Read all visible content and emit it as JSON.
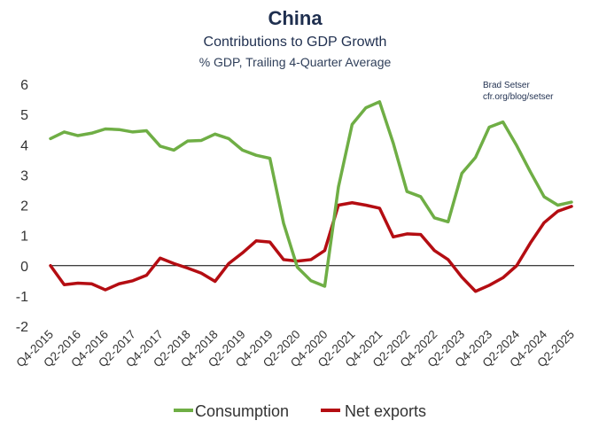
{
  "colors": {
    "consumption": "#6fae45",
    "net_exports": "#b40d12",
    "zero_line": "#000000",
    "title": "#1f2f4f"
  },
  "chart_data": {
    "type": "line",
    "title": "China",
    "subtitle": "Contributions to GDP Growth",
    "subtitle2": "% GDP, Trailing 4-Quarter Average",
    "credit_line1": "Brad Setser",
    "credit_line2": "cfr.org/blog/setser",
    "xlabel": "",
    "ylabel": "",
    "ylim": [
      -2,
      6
    ],
    "yticks": [
      "-2",
      "-1",
      "0",
      "1",
      "2",
      "3",
      "4",
      "5",
      "6"
    ],
    "grid": false,
    "legend": "bottom-center",
    "x": [
      "Q4-2015",
      "Q1-2016",
      "Q2-2016",
      "Q3-2016",
      "Q4-2016",
      "Q1-2017",
      "Q2-2017",
      "Q3-2017",
      "Q4-2017",
      "Q1-2018",
      "Q2-2018",
      "Q3-2018",
      "Q4-2018",
      "Q1-2019",
      "Q2-2019",
      "Q3-2019",
      "Q4-2019",
      "Q1-2020",
      "Q2-2020",
      "Q3-2020",
      "Q4-2020",
      "Q1-2021",
      "Q2-2021",
      "Q3-2021",
      "Q4-2021",
      "Q1-2022",
      "Q2-2022",
      "Q3-2022",
      "Q4-2022",
      "Q1-2023",
      "Q2-2023",
      "Q3-2023",
      "Q4-2023",
      "Q1-2024",
      "Q2-2024",
      "Q3-2024",
      "Q4-2024",
      "Q1-2025",
      "Q2-2025"
    ],
    "xticks": [
      "Q4-2015",
      "Q2-2016",
      "Q4-2016",
      "Q2-2017",
      "Q4-2017",
      "Q2-2018",
      "Q4-2018",
      "Q2-2019",
      "Q4-2019",
      "Q2-2020",
      "Q4-2020",
      "Q2-2021",
      "Q4-2021",
      "Q2-2022",
      "Q4-2022",
      "Q2-2023",
      "Q4-2023",
      "Q2-2024",
      "Q4-2024",
      "Q2-2025"
    ],
    "series": [
      {
        "name": "Consumption",
        "values": [
          4.2,
          4.42,
          4.3,
          4.38,
          4.52,
          4.5,
          4.42,
          4.46,
          3.95,
          3.82,
          4.12,
          4.14,
          4.35,
          4.2,
          3.82,
          3.65,
          3.55,
          1.4,
          -0.05,
          -0.5,
          -0.68,
          2.6,
          4.67,
          5.22,
          5.42,
          4.05,
          2.45,
          2.28,
          1.58,
          1.45,
          3.05,
          3.58,
          4.58,
          4.75,
          3.97,
          3.1,
          2.28,
          2.0,
          2.1
        ]
      },
      {
        "name": "Net exports",
        "values": [
          0.0,
          -0.63,
          -0.58,
          -0.6,
          -0.8,
          -0.6,
          -0.5,
          -0.32,
          0.25,
          0.07,
          -0.08,
          -0.25,
          -0.52,
          0.07,
          0.42,
          0.82,
          0.78,
          0.2,
          0.15,
          0.2,
          0.5,
          2.0,
          2.08,
          2.0,
          1.9,
          0.95,
          1.05,
          1.03,
          0.5,
          0.2,
          -0.38,
          -0.85,
          -0.65,
          -0.4,
          0.0,
          0.75,
          1.42,
          1.8,
          1.96
        ]
      }
    ]
  }
}
